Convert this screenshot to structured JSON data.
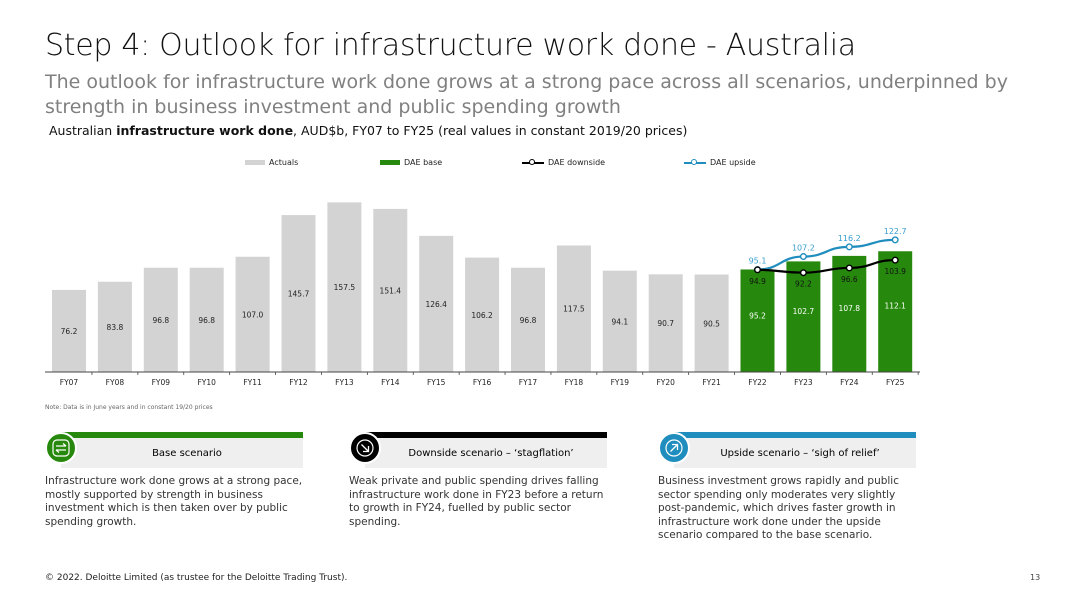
{
  "title": "Step 4: Outlook for infrastructure work done - Australia",
  "subtitle": "The outlook for infrastructure work done grows at a strong pace across all scenarios, underpinned by strength in business investment and public spending growth",
  "chart_caption": {
    "prefix": "Australian ",
    "bold": "infrastructure work done",
    "suffix": ", AUD$b, FY07 to FY25 (real values in constant 2019/20 prices)"
  },
  "colors": {
    "actuals": "#d3d3d3",
    "base": "#26890d",
    "downside": "#000000",
    "upside": "#1f8dbd",
    "upside_label": "#3a9fd0"
  },
  "chart_data": {
    "type": "bar",
    "title": "",
    "xlabel": "",
    "ylabel": "",
    "ylim": [
      0,
      170
    ],
    "legend_position": "top",
    "grid": false,
    "categories": [
      "FY07",
      "FY08",
      "FY09",
      "FY10",
      "FY11",
      "FY12",
      "FY13",
      "FY14",
      "FY15",
      "FY16",
      "FY17",
      "FY18",
      "FY19",
      "FY20",
      "FY21",
      "FY22",
      "FY23",
      "FY24",
      "FY25"
    ],
    "series": [
      {
        "name": "Actuals",
        "type": "bar",
        "values": [
          76.2,
          83.8,
          96.8,
          96.8,
          107.0,
          145.7,
          157.5,
          151.4,
          126.4,
          106.2,
          96.8,
          117.5,
          94.1,
          90.7,
          90.5,
          null,
          null,
          null,
          null
        ]
      },
      {
        "name": "DAE base",
        "type": "bar",
        "values": [
          null,
          null,
          null,
          null,
          null,
          null,
          null,
          null,
          null,
          null,
          null,
          null,
          null,
          null,
          null,
          95.2,
          102.7,
          107.8,
          112.1
        ]
      },
      {
        "name": "DAE downside",
        "type": "line",
        "values": [
          null,
          null,
          null,
          null,
          null,
          null,
          null,
          null,
          null,
          null,
          null,
          null,
          null,
          null,
          null,
          94.9,
          92.2,
          96.6,
          103.9
        ]
      },
      {
        "name": "DAE upside",
        "type": "line",
        "values": [
          null,
          null,
          null,
          null,
          null,
          null,
          null,
          null,
          null,
          null,
          null,
          null,
          null,
          null,
          null,
          95.1,
          107.2,
          116.2,
          122.7
        ]
      }
    ]
  },
  "note": "Note: Data is in June years and in constant 19/20 prices",
  "scenarios": [
    {
      "title": "Base scenario",
      "icon": "arrows-exchange-icon",
      "text": "Infrastructure work done grows at a strong pace, mostly supported by strength in business investment which is then taken over by public spending growth."
    },
    {
      "title": "Downside scenario – ‘stagflation’",
      "icon": "arrow-down-right-icon",
      "text": "Weak private and public spending drives falling infrastructure work done in FY23 before a return to growth in FY24, fuelled by public sector spending."
    },
    {
      "title": "Upside scenario – ‘sigh of relief’",
      "icon": "arrow-up-right-icon",
      "text": "Business investment grows rapidly and public sector spending only moderates very slightly post-pandemic, which drives faster growth in infrastructure work done under the upside scenario compared to the base scenario."
    }
  ],
  "footer": "© 2022. Deloitte Limited (as trustee for the Deloitte Trading Trust).",
  "page_number": "13"
}
